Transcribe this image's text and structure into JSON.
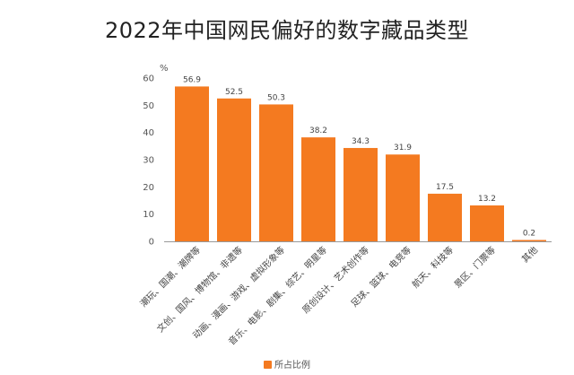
{
  "chart_data": {
    "type": "bar",
    "title": "2022年中国网民偏好的数字藏品类型",
    "unit": "%",
    "categories": [
      "潮玩、国潮、潮牌等",
      "文创、国风、博物馆、非遗等",
      "动画、漫画、游戏、虚拟形象等",
      "音乐、电影、剧集、综艺、明星等",
      "原创设计、艺术创作等",
      "足球、篮球、电竞等",
      "航天、科技等",
      "景区、门票等",
      "其他"
    ],
    "series": [
      {
        "name": "所占比例",
        "values": [
          56.9,
          52.5,
          50.3,
          38.2,
          34.3,
          31.9,
          17.5,
          13.2,
          0.2
        ],
        "value_labels": [
          "56.9",
          "52.5",
          "50.3",
          "38.2",
          "34.3",
          "31.9",
          "17.5",
          "13.2",
          "0.2"
        ]
      }
    ],
    "ylim": [
      0,
      60
    ],
    "yticks": [
      0,
      10,
      20,
      30,
      40,
      50,
      60
    ],
    "grid": false,
    "legend_position": "bottom",
    "colors": {
      "bar": "#f47a20",
      "axis": "#999999"
    }
  }
}
